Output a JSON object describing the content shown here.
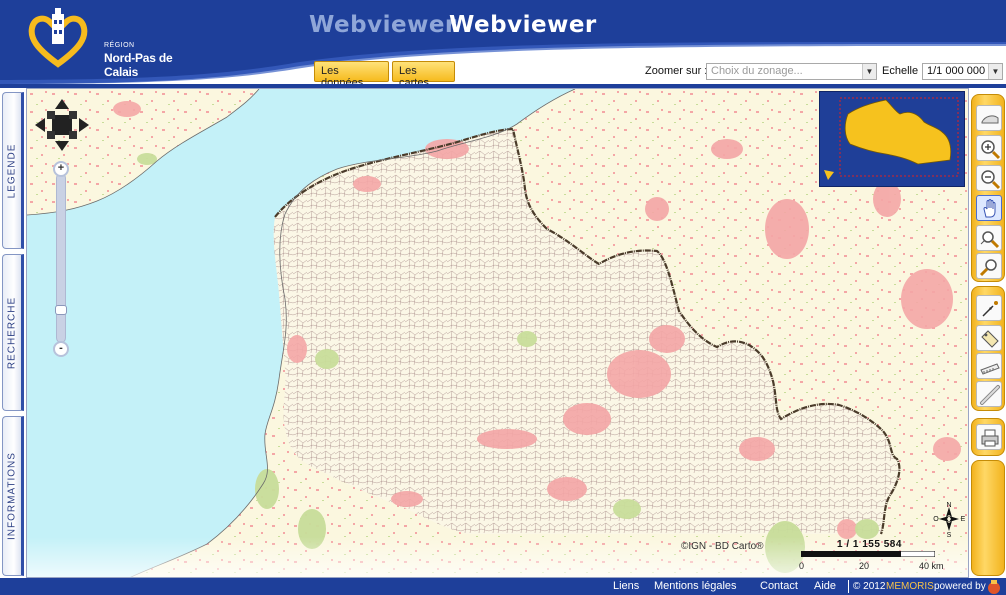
{
  "header": {
    "logo": {
      "region_label": "RÉGION",
      "region_name": "Nord-Pas de Calais"
    },
    "title_ghost": "Webviewer",
    "title": "Webviewer",
    "tabs": [
      {
        "label": "Les données"
      },
      {
        "label": "Les cartes"
      }
    ],
    "zoom": {
      "label": "Zoomer sur :",
      "placeholder": "Choix du zonage..."
    },
    "scale": {
      "label": "Echelle :",
      "value": "1/1 000 000"
    }
  },
  "left_tabs": [
    {
      "label": "LEGENDE"
    },
    {
      "label": "RECHERCHE"
    },
    {
      "label": "INFORMATIONS"
    }
  ],
  "map": {
    "copyright": "©IGN - BD Carto®",
    "scale_ratio": "1 / 1 155 584",
    "scale_ticks": [
      "0",
      "20",
      "40 km"
    ],
    "compass": {
      "n": "N",
      "s": "S",
      "e": "E",
      "o": "O"
    }
  },
  "toolbar": {
    "icons": [
      "full-extent-icon",
      "zoom-in-icon",
      "zoom-out-icon",
      "pan-hand-icon",
      "zoom-previous-icon",
      "zoom-next-icon",
      "identify-icon",
      "label-icon",
      "measure-area-icon",
      "measure-distance-icon",
      "print-icon"
    ]
  },
  "footer": {
    "links": [
      "Liens",
      "Mentions légales",
      "Contact",
      "Aide"
    ],
    "copyright": "© 2012",
    "brand": "MEMORIS",
    "powered_by": "powered by"
  },
  "colors": {
    "header_blue": "#1e3f9a",
    "accent_yellow": "#f6bb1e",
    "sea": "#c4f1f8",
    "land": "#fbf7df",
    "urban": "#f4a6a6",
    "forest": "#c8dd9a"
  }
}
